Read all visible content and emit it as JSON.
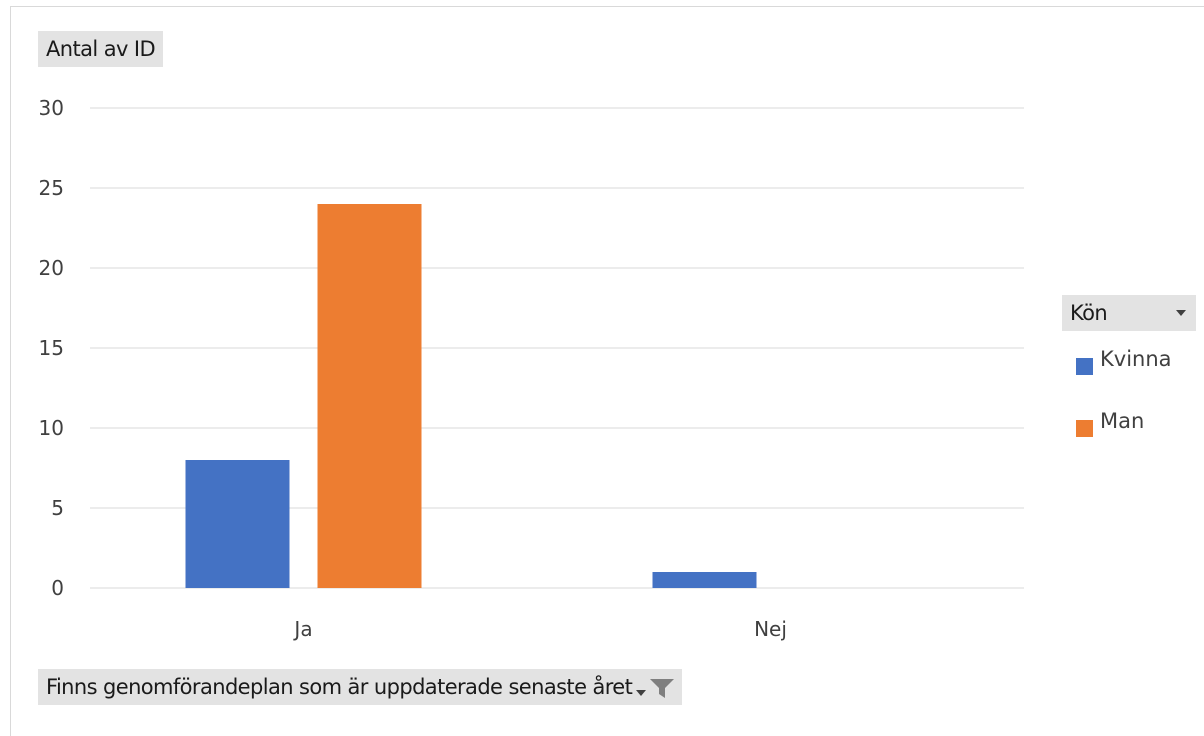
{
  "chart_data": {
    "type": "bar",
    "value_field": "Antal av ID",
    "axis_field": "Finns genomförandeplan som är uppdaterade senaste året",
    "legend_field": "Kön",
    "categories": [
      "Ja",
      "Nej"
    ],
    "series": [
      {
        "name": "Kvinna",
        "color": "#4472c4",
        "values": [
          8,
          1
        ]
      },
      {
        "name": "Man",
        "color": "#ed7d31",
        "values": [
          24,
          0
        ]
      }
    ],
    "ylim": [
      0,
      30
    ],
    "yticks": [
      0,
      5,
      10,
      15,
      20,
      25,
      30
    ],
    "grid": true,
    "legend_position": "right"
  },
  "icons": {
    "legend_dropdown": "chevron-down-icon",
    "axis_filter": "filter-icon"
  }
}
